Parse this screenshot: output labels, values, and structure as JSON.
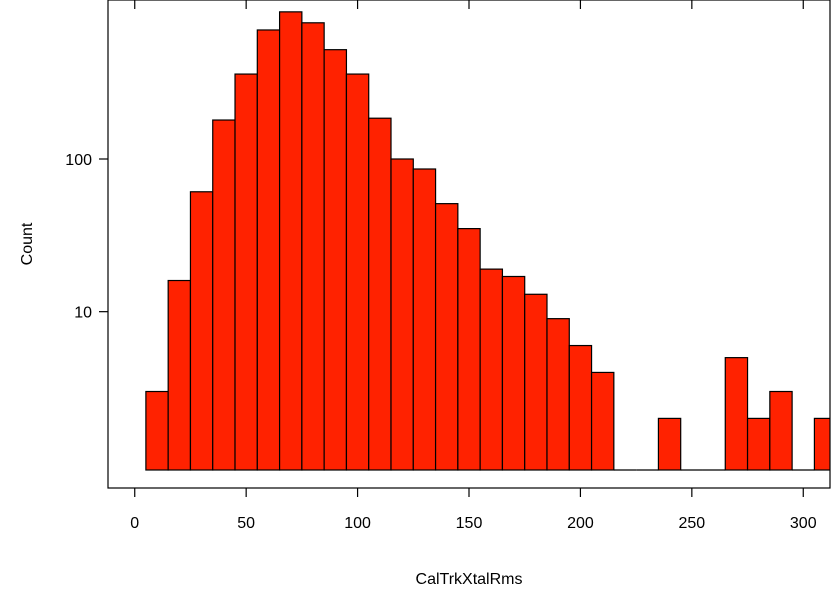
{
  "chart_data": {
    "type": "bar",
    "xlabel": "CalTrkXtalRms",
    "ylabel": "Count",
    "y_scale": "log",
    "xlim": [
      -12,
      312
    ],
    "ylim": [
      0.7,
      1100
    ],
    "x_ticks": [
      0,
      50,
      100,
      150,
      200,
      250,
      300
    ],
    "x_tick_labels": [
      "0",
      "50",
      "100",
      "150",
      "200",
      "250",
      "300"
    ],
    "y_ticks": [
      10,
      100
    ],
    "y_tick_labels": [
      "10",
      "100"
    ],
    "bin_width": 10,
    "bins": [
      {
        "x0": 5,
        "x1": 15,
        "count": 3
      },
      {
        "x0": 15,
        "x1": 25,
        "count": 16
      },
      {
        "x0": 25,
        "x1": 35,
        "count": 61
      },
      {
        "x0": 35,
        "x1": 45,
        "count": 180
      },
      {
        "x0": 45,
        "x1": 55,
        "count": 360
      },
      {
        "x0": 55,
        "x1": 65,
        "count": 700
      },
      {
        "x0": 65,
        "x1": 75,
        "count": 920
      },
      {
        "x0": 75,
        "x1": 85,
        "count": 780
      },
      {
        "x0": 85,
        "x1": 95,
        "count": 520
      },
      {
        "x0": 95,
        "x1": 105,
        "count": 360
      },
      {
        "x0": 105,
        "x1": 115,
        "count": 185
      },
      {
        "x0": 115,
        "x1": 125,
        "count": 100
      },
      {
        "x0": 125,
        "x1": 135,
        "count": 86
      },
      {
        "x0": 135,
        "x1": 145,
        "count": 51
      },
      {
        "x0": 145,
        "x1": 155,
        "count": 35
      },
      {
        "x0": 155,
        "x1": 165,
        "count": 19
      },
      {
        "x0": 165,
        "x1": 175,
        "count": 17
      },
      {
        "x0": 175,
        "x1": 185,
        "count": 13
      },
      {
        "x0": 185,
        "x1": 195,
        "count": 9
      },
      {
        "x0": 195,
        "x1": 205,
        "count": 6
      },
      {
        "x0": 205,
        "x1": 215,
        "count": 4
      },
      {
        "x0": 215,
        "x1": 225,
        "count": 1
      },
      {
        "x0": 225,
        "x1": 235,
        "count": 1
      },
      {
        "x0": 235,
        "x1": 245,
        "count": 2
      },
      {
        "x0": 245,
        "x1": 255,
        "count": 1
      },
      {
        "x0": 255,
        "x1": 265,
        "count": 1
      },
      {
        "x0": 265,
        "x1": 275,
        "count": 5
      },
      {
        "x0": 275,
        "x1": 285,
        "count": 2
      },
      {
        "x0": 285,
        "x1": 295,
        "count": 3
      },
      {
        "x0": 295,
        "x1": 305,
        "count": 1
      },
      {
        "x0": 305,
        "x1": 315,
        "count": 2
      }
    ],
    "bar_color": "#ff2200",
    "grid": false,
    "legend": "none"
  }
}
